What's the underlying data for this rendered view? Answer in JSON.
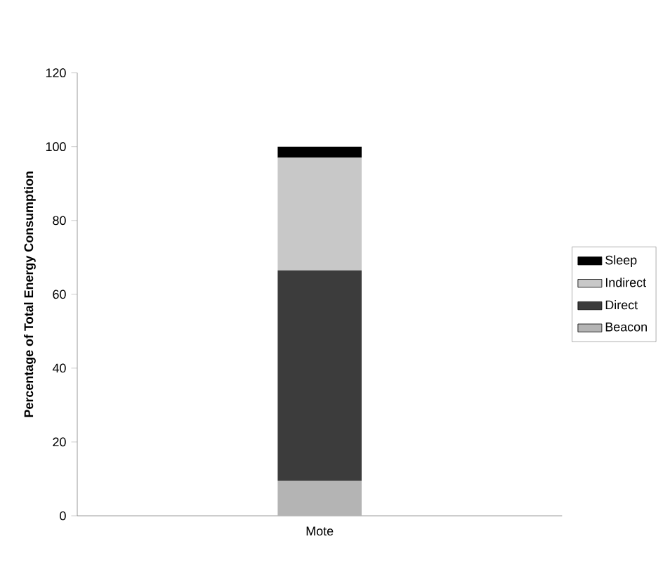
{
  "chart_data": {
    "type": "bar",
    "stacked": true,
    "ylabel": "Percentage of Total Energy Consumption",
    "categories": [
      "Mote"
    ],
    "series": [
      {
        "name": "Beacon",
        "color": "#b4b4b4",
        "values": [
          9.5
        ]
      },
      {
        "name": "Direct",
        "color": "#3c3c3c",
        "values": [
          57
        ]
      },
      {
        "name": "Indirect",
        "color": "#c8c8c8",
        "values": [
          30.5
        ]
      },
      {
        "name": "Sleep",
        "color": "#000000",
        "values": [
          3
        ]
      }
    ],
    "ylim": [
      0,
      120
    ],
    "yticks": [
      0,
      20,
      40,
      60,
      80,
      100,
      120
    ],
    "grid": false,
    "legend": "right"
  }
}
